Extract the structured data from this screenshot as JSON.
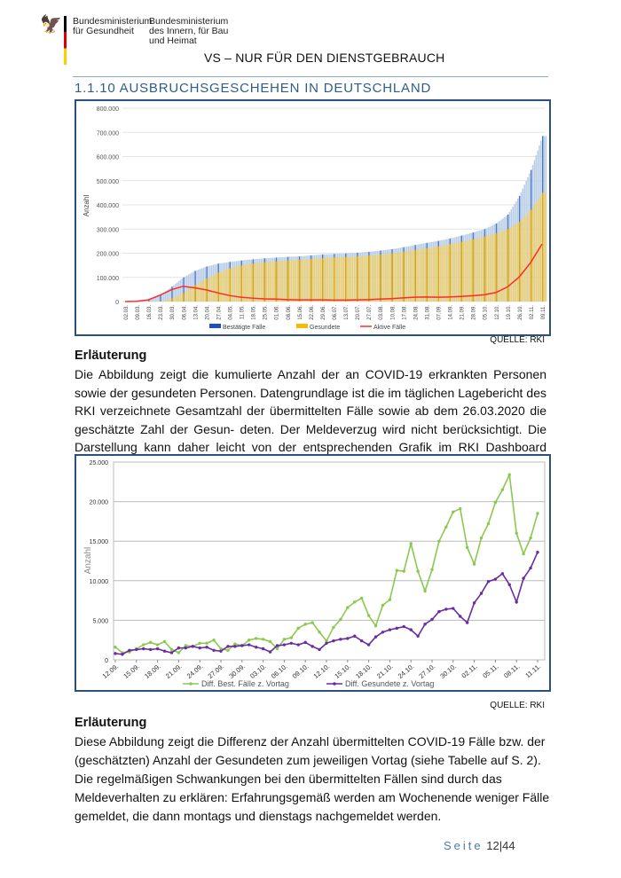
{
  "header": {
    "ministry1": [
      "Bundesministerium",
      "für Gesundheit"
    ],
    "ministry2": [
      "Bundesministerium",
      "des Innern, für Bau",
      "und Heimat"
    ],
    "classification": "VS – NUR FÜR DEN DIENSTGEBRAUCH",
    "section_title": "1.1.10 AUSBRUCHSGESCHEHEN IN DEUTSCHLAND"
  },
  "colors": {
    "confirmed": "#4472c4",
    "recovered": "#f2c12e",
    "active": "#ff2a2a",
    "green": "#8cc850",
    "purple": "#6a2ca0"
  },
  "chart_data": [
    {
      "type": "bar",
      "title": "",
      "ylabel": "Anzahl",
      "ylim": [
        0,
        800000
      ],
      "yticks": [
        "0",
        "100.000",
        "200.000",
        "300.000",
        "400.000",
        "500.000",
        "600.000",
        "700.000",
        "800.000"
      ],
      "categories": [
        "02.03.",
        "09.03.",
        "16.03.",
        "23.03.",
        "30.03.",
        "06.04.",
        "13.04.",
        "20.04.",
        "27.04.",
        "04.05.",
        "11.05.",
        "18.05.",
        "25.05.",
        "01.06.",
        "08.06.",
        "15.06.",
        "22.06.",
        "29.06.",
        "06.07.",
        "13.07.",
        "20.07.",
        "27.07.",
        "03.08.",
        "10.08.",
        "17.08.",
        "24.08.",
        "31.08.",
        "07.09.",
        "14.09.",
        "21.09.",
        "28.09.",
        "05.10.",
        "12.10.",
        "19.10.",
        "26.10.",
        "02.11.",
        "09.11."
      ],
      "series": [
        {
          "name": "Bestätigte Fälle",
          "type": "bar",
          "values": [
            0,
            1000,
            7000,
            27000,
            62000,
            100000,
            127000,
            145000,
            157000,
            164000,
            170000,
            175000,
            179000,
            182000,
            185000,
            187000,
            191000,
            195000,
            197000,
            199000,
            202000,
            206000,
            211000,
            217000,
            225000,
            234000,
            243000,
            251000,
            261000,
            273000,
            286000,
            300000,
            323000,
            360000,
            437000,
            545000,
            685000
          ]
        },
        {
          "name": "Gesundete",
          "type": "bar",
          "values": [
            0,
            0,
            0,
            1000,
            13000,
            35000,
            68000,
            95000,
            120000,
            137000,
            149000,
            157000,
            162000,
            166000,
            170000,
            173000,
            176000,
            179000,
            182000,
            184000,
            187000,
            190000,
            194000,
            199000,
            206000,
            213000,
            220000,
            228000,
            237000,
            247000,
            257000,
            269000,
            282000,
            300000,
            330000,
            380000,
            450000
          ]
        },
        {
          "name": "Aktive Fälle",
          "type": "line",
          "values": [
            0,
            1000,
            7000,
            26000,
            49000,
            63000,
            57000,
            48000,
            36000,
            25000,
            18000,
            14000,
            11000,
            10000,
            8000,
            7000,
            7000,
            7000,
            6000,
            6000,
            7000,
            8000,
            10000,
            12000,
            15000,
            18000,
            19000,
            18000,
            19000,
            21000,
            24000,
            28000,
            37000,
            60000,
            100000,
            160000,
            238000
          ]
        }
      ],
      "legend": "bottom"
    },
    {
      "type": "line",
      "ylabel": "Anzahl",
      "ylim": [
        0,
        25000
      ],
      "yticks": [
        "0",
        "5.000",
        "10.000",
        "15.000",
        "20.000",
        "25.000"
      ],
      "xticks": [
        "12.09.",
        "15.09.",
        "18.09.",
        "21.09.",
        "24.09.",
        "27.09.",
        "30.09.",
        "03.10.",
        "06.10.",
        "09.10.",
        "12.10.",
        "15.10.",
        "18.10.",
        "21.10.",
        "24.10.",
        "27.10.",
        "30.10.",
        "02.11.",
        "05.11.",
        "08.11.",
        "11.11."
      ],
      "x_start": "12.09.",
      "x_end": "11.11.",
      "series": [
        {
          "name": "Diff. Best. Fälle z. Vortag",
          "values": [
            1600,
            900,
            1000,
            1400,
            1900,
            2200,
            1900,
            2300,
            1300,
            900,
            1800,
            1700,
            2100,
            2100,
            2500,
            1400,
            1200,
            2000,
            1800,
            2500,
            2700,
            2600,
            2300,
            1400,
            2600,
            2800,
            4000,
            4500,
            4700,
            3500,
            2400,
            4100,
            5100,
            6600,
            7300,
            7800,
            5600,
            4300,
            6900,
            7600,
            11300,
            11200,
            14700,
            11200,
            8700,
            11400,
            15000,
            16800,
            18700,
            19100,
            14200,
            12100,
            15400,
            17200,
            19900,
            21500,
            23400,
            16000,
            13400,
            15400,
            18500
          ]
        },
        {
          "name": "Diff. Gesundete z. Vortag",
          "values": [
            800,
            700,
            1200,
            1300,
            1400,
            1300,
            1400,
            1100,
            900,
            1500,
            1500,
            1700,
            1500,
            1600,
            1200,
            1100,
            1700,
            1700,
            1800,
            1900,
            1600,
            1400,
            1000,
            1800,
            1900,
            2100,
            1900,
            2200,
            1700,
            1300,
            2100,
            2400,
            2600,
            2700,
            3000,
            2400,
            1900,
            2900,
            3500,
            3800,
            4000,
            4200,
            3800,
            3000,
            4500,
            5100,
            6100,
            6400,
            6500,
            5500,
            4700,
            7200,
            8400,
            9900,
            10200,
            10900,
            9500,
            7300,
            10300,
            11600,
            13600
          ]
        }
      ],
      "legend": "bottom"
    }
  ],
  "source1": "QUELLE: RKI",
  "expl1": {
    "heading": "Erläuterung",
    "text": "Die Abbildung zeigt die kumulierte Anzahl der an COVID-19 erkrankten Personen sowie der gesundeten Personen. Datengrundlage ist die im täglichen Lagebericht des RKI verzeichnete Gesamtzahl der übermittelten Fälle sowie ab dem 26.03.2020 die geschätzte Zahl der Gesun- deten. Der Meldeverzug wird nicht berücksichtigt. Die Darstellung kann daher leicht von der entsprechenden Grafik im RKI Dashboard abweichen."
  },
  "source2": "QUELLE: RKI",
  "expl2": {
    "heading": "Erläuterung",
    "text": "Diese Abbildung zeigt die Differenz der Anzahl übermittelten COVID-19 Fälle bzw. der (geschätzten) Anzahl der Gesundeten zum jeweiligen Vortag (siehe Tabelle auf S. 2). Die regelmäßigen Schwankungen bei den übermittelten Fällen sind durch das Meldeverhalten zu erklären: Erfahrungsgemäß werden am Wochenende weniger Fälle gemeldet, die dann montags und dienstags nachgemeldet werden."
  },
  "footer": {
    "label": "Seite",
    "page": "12",
    "sep": "|",
    "total": "44"
  }
}
